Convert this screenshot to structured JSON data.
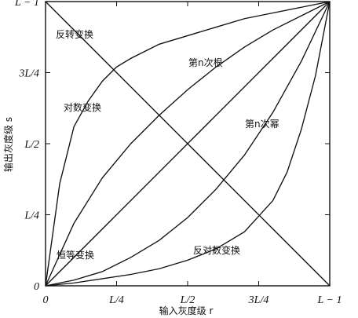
{
  "chart_data": {
    "type": "line",
    "title": "",
    "xlabel": "输入灰度级 r",
    "ylabel": "输出灰度级 s",
    "xlim": [
      0,
      1
    ],
    "ylim": [
      0,
      1
    ],
    "ticks": {
      "x": [
        {
          "value": 0,
          "label": "0"
        },
        {
          "value": 0.25,
          "label": "L/4"
        },
        {
          "value": 0.5,
          "label": "L/2"
        },
        {
          "value": 0.75,
          "label": "3L/4"
        },
        {
          "value": 1,
          "label": "L − 1"
        }
      ],
      "y": [
        {
          "value": 0,
          "label": "0"
        },
        {
          "value": 0.25,
          "label": "L/4"
        },
        {
          "value": 0.5,
          "label": "L/2"
        },
        {
          "value": 0.75,
          "label": "3L/4"
        },
        {
          "value": 1,
          "label": "L − 1"
        }
      ]
    },
    "series": [
      {
        "name": "反转变换",
        "x": [
          0,
          0.25,
          0.5,
          0.75,
          1
        ],
        "y": [
          1,
          0.75,
          0.5,
          0.25,
          0
        ]
      },
      {
        "name": "对数变换",
        "x": [
          0,
          0.05,
          0.1,
          0.15,
          0.2,
          0.25,
          0.3,
          0.4,
          0.5,
          0.6,
          0.7,
          0.8,
          0.9,
          1
        ],
        "y": [
          0,
          0.36,
          0.56,
          0.65,
          0.72,
          0.77,
          0.8,
          0.85,
          0.88,
          0.91,
          0.94,
          0.96,
          0.98,
          1
        ]
      },
      {
        "name": "第n次根",
        "x": [
          0,
          0.1,
          0.2,
          0.3,
          0.4,
          0.5,
          0.6,
          0.7,
          0.8,
          0.9,
          1
        ],
        "y": [
          0,
          0.22,
          0.38,
          0.5,
          0.6,
          0.69,
          0.77,
          0.84,
          0.9,
          0.95,
          1
        ]
      },
      {
        "name": "恒等变换",
        "x": [
          0,
          0.25,
          0.5,
          0.75,
          1
        ],
        "y": [
          0,
          0.25,
          0.5,
          0.75,
          1
        ]
      },
      {
        "name": "第n次幂",
        "x": [
          0,
          0.1,
          0.2,
          0.3,
          0.4,
          0.5,
          0.6,
          0.7,
          0.8,
          0.9,
          1
        ],
        "y": [
          0,
          0.02,
          0.05,
          0.1,
          0.16,
          0.24,
          0.34,
          0.46,
          0.61,
          0.79,
          1
        ]
      },
      {
        "name": "反对数变换",
        "x": [
          0,
          0.1,
          0.2,
          0.3,
          0.4,
          0.5,
          0.6,
          0.7,
          0.8,
          0.85,
          0.9,
          0.95,
          1
        ],
        "y": [
          0,
          0.01,
          0.025,
          0.04,
          0.06,
          0.09,
          0.13,
          0.19,
          0.3,
          0.4,
          0.55,
          0.74,
          1
        ]
      }
    ],
    "annotations": [
      {
        "text": "反转变换",
        "series": "反转变换"
      },
      {
        "text": "对数变换",
        "series": "对数变换"
      },
      {
        "text": "第n次根",
        "series": "第n次根"
      },
      {
        "text": "恒等变换",
        "series": "恒等变换"
      },
      {
        "text": "第n次幂",
        "series": "第n次幂"
      },
      {
        "text": "反对数变换",
        "series": "反对数变换"
      }
    ],
    "grid": false,
    "legend": "none",
    "colors": {
      "background": "#ffffff",
      "line": "#111111",
      "text": "#111111"
    }
  }
}
